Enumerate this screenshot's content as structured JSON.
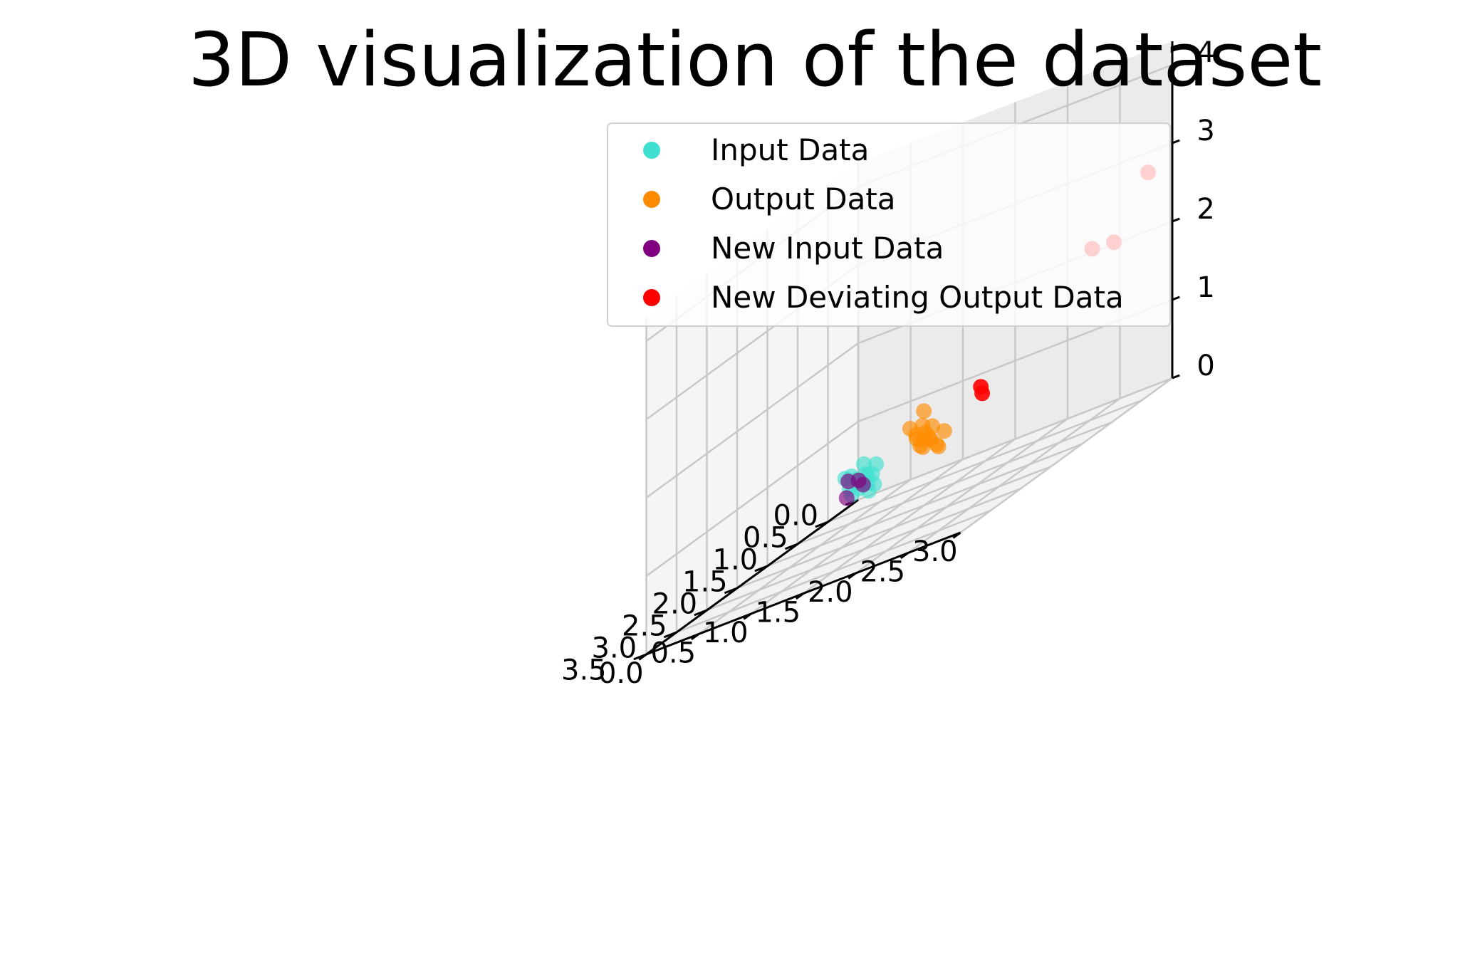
{
  "chart_data": {
    "type": "scatter",
    "projection": "3d",
    "title": "3D visualization of the dataset",
    "xlabel": "",
    "ylabel": "",
    "zlabel": "",
    "x_ticks": [
      "0.0",
      "0.5",
      "1.0",
      "1.5",
      "2.0",
      "2.5",
      "3.0",
      "3.5"
    ],
    "y_ticks": [
      "0.0",
      "0.5",
      "1.0",
      "1.5",
      "2.0",
      "2.5",
      "3.0"
    ],
    "z_ticks": [
      "0",
      "1",
      "2",
      "3",
      "4"
    ],
    "xlim": [
      0.0,
      3.5
    ],
    "ylim": [
      0.0,
      3.0
    ],
    "zlim": [
      0,
      4.3
    ],
    "grid": true,
    "legend_position": "top-center",
    "series": [
      {
        "name": "Input Data",
        "color": "#40E0D0",
        "points": [
          [
            0.12,
            0.05,
            0.3
          ],
          [
            0.18,
            0.12,
            0.25
          ],
          [
            0.22,
            0.2,
            0.35
          ],
          [
            0.1,
            0.15,
            0.2
          ],
          [
            0.25,
            0.08,
            0.4
          ],
          [
            0.15,
            0.22,
            0.3
          ],
          [
            0.3,
            0.18,
            0.22
          ],
          [
            0.08,
            0.1,
            0.45
          ],
          [
            0.28,
            0.25,
            0.33
          ],
          [
            0.2,
            0.05,
            0.15
          ],
          [
            0.35,
            0.12,
            0.28
          ],
          [
            0.05,
            0.2,
            0.38
          ],
          [
            0.22,
            0.28,
            0.18
          ],
          [
            0.32,
            0.06,
            0.42
          ],
          [
            0.14,
            0.18,
            0.1
          ]
        ]
      },
      {
        "name": "Output Data",
        "color": "#FF8C00",
        "points": [
          [
            0.05,
            0.62,
            0.4
          ],
          [
            0.1,
            0.7,
            0.55
          ],
          [
            0.15,
            0.78,
            0.45
          ],
          [
            0.08,
            0.66,
            0.65
          ],
          [
            0.2,
            0.74,
            0.5
          ],
          [
            0.12,
            0.82,
            0.35
          ],
          [
            0.02,
            0.72,
            0.58
          ],
          [
            0.18,
            0.6,
            0.7
          ],
          [
            0.25,
            0.76,
            0.42
          ],
          [
            0.1,
            0.88,
            0.48
          ],
          [
            0.22,
            0.68,
            0.6
          ],
          [
            0.06,
            0.8,
            0.3
          ],
          [
            0.16,
            0.72,
            0.85
          ],
          [
            0.28,
            0.84,
            0.52
          ],
          [
            0.04,
            0.58,
            0.5
          ]
        ]
      },
      {
        "name": "New Input Data",
        "color": "#800080",
        "points": [
          [
            0.2,
            0.12,
            0.3
          ],
          [
            0.3,
            0.22,
            0.25
          ],
          [
            0.45,
            0.15,
            0.2
          ],
          [
            0.25,
            0.05,
            0.35
          ]
        ]
      },
      {
        "name": "New Deviating Output Data",
        "color": "#FF0000",
        "points": [
          [
            0.05,
            1.2,
            0.85
          ],
          [
            0.2,
            1.3,
            0.8
          ],
          [
            0.2,
            2.35,
            2.1
          ],
          [
            0.1,
            2.5,
            2.05
          ],
          [
            0.4,
            3.0,
            2.85
          ]
        ]
      }
    ]
  }
}
